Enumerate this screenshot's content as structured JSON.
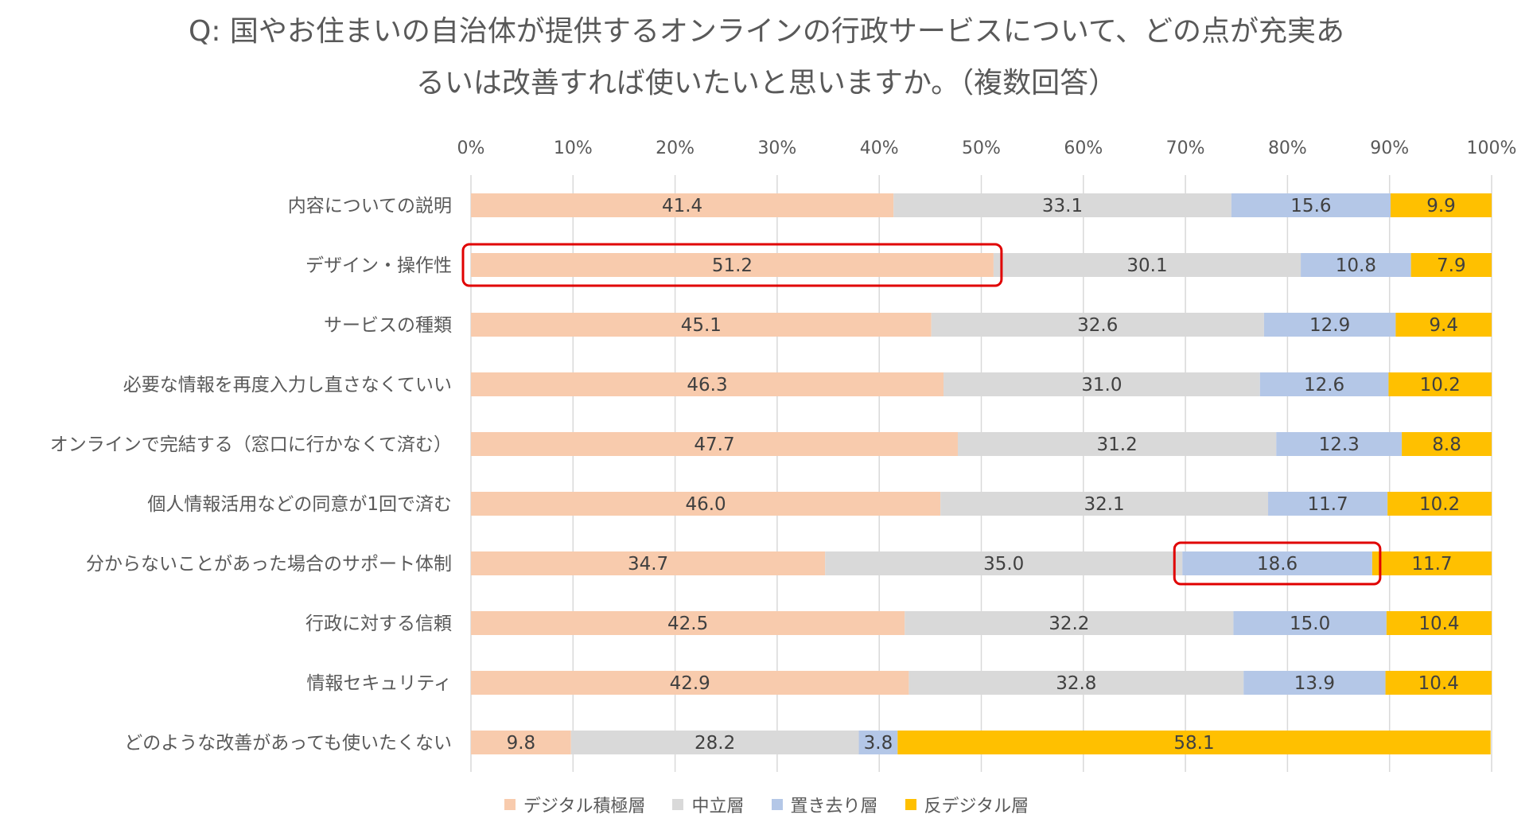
{
  "chart_data": {
    "type": "bar",
    "orientation": "horizontal",
    "stacked": true,
    "title_lines": [
      "Q: 国やお住まいの自治体が提供するオンラインの行政サービスについて、どの点が充実あ",
      "るいは改善すれば使いたいと思いますか。（複数回答）"
    ],
    "xlim": [
      0,
      100
    ],
    "x_ticks": [
      "0%",
      "10%",
      "20%",
      "30%",
      "40%",
      "50%",
      "60%",
      "70%",
      "80%",
      "90%",
      "100%"
    ],
    "grid": true,
    "legend_position": "bottom",
    "categories": [
      "内容についての説明",
      "デザイン・操作性",
      "サービスの種類",
      "必要な情報を再度入力し直さなくていい",
      "オンラインで完結する（窓口に行かなくて済む）",
      "個人情報活用などの同意が1回で済む",
      "分からないことがあった場合のサポート体制",
      "行政に対する信頼",
      "情報セキュリティ",
      "どのような改善があっても使いたくない"
    ],
    "series": [
      {
        "name": "デジタル積極層",
        "color": "#F8CBAD",
        "values": [
          41.4,
          51.2,
          45.1,
          46.3,
          47.7,
          46.0,
          34.7,
          42.5,
          42.9,
          9.8
        ],
        "labels": [
          "41.4",
          "51.2",
          "45.1",
          "46.3",
          "47.7",
          "46.0",
          "34.7",
          "42.5",
          "42.9",
          "9.8"
        ]
      },
      {
        "name": "中立層",
        "color": "#D9D9D9",
        "values": [
          33.1,
          30.1,
          32.6,
          31.0,
          31.2,
          32.1,
          35.0,
          32.2,
          32.8,
          28.2
        ],
        "labels": [
          "33.1",
          "30.1",
          "32.6",
          "31.0",
          "31.2",
          "32.1",
          "35.0",
          "32.2",
          "32.8",
          "28.2"
        ]
      },
      {
        "name": "置き去り層",
        "color": "#B4C7E7",
        "values": [
          15.6,
          10.8,
          12.9,
          12.6,
          12.3,
          11.7,
          18.6,
          15.0,
          13.9,
          3.8
        ],
        "labels": [
          "15.6",
          "10.8",
          "12.9",
          "12.6",
          "12.3",
          "11.7",
          "18.6",
          "15.0",
          "13.9",
          "3.8"
        ]
      },
      {
        "name": "反デジタル層",
        "color": "#FFC000",
        "values": [
          9.9,
          7.9,
          9.4,
          10.2,
          8.8,
          10.2,
          11.7,
          10.4,
          10.4,
          58.1
        ],
        "labels": [
          "9.9",
          "7.9",
          "9.4",
          "10.2",
          "8.8",
          "10.2",
          "11.7",
          "10.4",
          "10.4",
          "58.1"
        ]
      }
    ],
    "highlights": [
      {
        "category_index": 1,
        "series_index": 0,
        "color": "#E00000"
      },
      {
        "category_index": 6,
        "series_index": 2,
        "color": "#E00000"
      }
    ]
  }
}
